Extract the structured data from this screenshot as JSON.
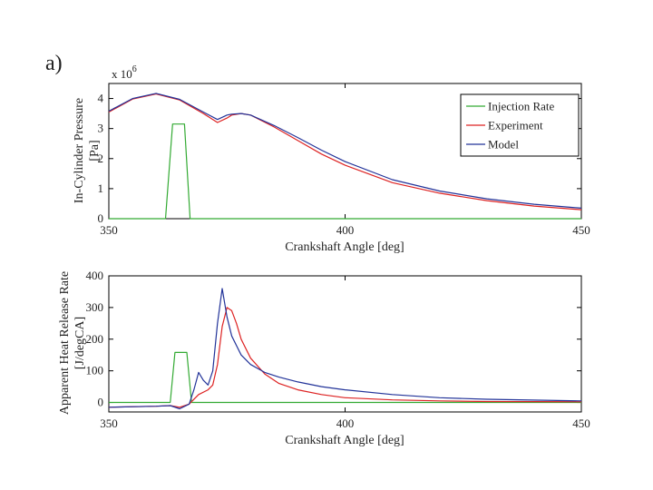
{
  "panel_label": "a)",
  "chart_data": [
    {
      "type": "line",
      "title": "",
      "xlabel": "Crankshaft Angle [deg]",
      "ylabel_line1": "In-Cylinder Pressure",
      "ylabel_line2": "[Pa]",
      "y_multiplier": "x 10",
      "y_multiplier_exponent": "6",
      "xlim": [
        350,
        450
      ],
      "ylim": [
        0,
        4.5
      ],
      "xticks": [
        350,
        400,
        450
      ],
      "yticks": [
        0,
        1,
        2,
        3,
        4
      ],
      "legend": {
        "position": "top-right",
        "entries": [
          "Injection Rate",
          "Experiment",
          "Model"
        ]
      },
      "series": [
        {
          "name": "Injection Rate",
          "color": "#33aa33",
          "x": [
            350,
            362,
            363.5,
            366,
            367.2,
            450
          ],
          "y": [
            0,
            0,
            3.15,
            3.15,
            0,
            0
          ]
        },
        {
          "name": "Experiment",
          "color": "#dd2222",
          "x": [
            350,
            355,
            360,
            365,
            370,
            373,
            375,
            376,
            378,
            380,
            385,
            390,
            395,
            400,
            410,
            420,
            430,
            440,
            450
          ],
          "y": [
            3.55,
            3.98,
            4.15,
            3.95,
            3.5,
            3.2,
            3.35,
            3.45,
            3.5,
            3.45,
            3.05,
            2.6,
            2.15,
            1.78,
            1.2,
            0.85,
            0.6,
            0.42,
            0.3
          ]
        },
        {
          "name": "Model",
          "color": "#223399",
          "x": [
            350,
            355,
            360,
            365,
            370,
            373,
            375,
            376,
            378,
            380,
            385,
            390,
            395,
            400,
            410,
            420,
            430,
            440,
            450
          ],
          "y": [
            3.58,
            4.0,
            4.17,
            3.97,
            3.55,
            3.3,
            3.45,
            3.48,
            3.5,
            3.45,
            3.1,
            2.7,
            2.28,
            1.9,
            1.3,
            0.92,
            0.66,
            0.48,
            0.35
          ]
        }
      ]
    },
    {
      "type": "line",
      "title": "",
      "xlabel": "Crankshaft Angle [deg]",
      "ylabel_line1": "Apparent Heat Release Rate",
      "ylabel_line2": "[J/degCA]",
      "xlim": [
        350,
        450
      ],
      "ylim": [
        -30,
        400
      ],
      "xticks": [
        350,
        400,
        450
      ],
      "yticks": [
        0,
        100,
        200,
        300,
        400
      ],
      "series": [
        {
          "name": "Injection Rate",
          "color": "#33aa33",
          "x": [
            350,
            363,
            364,
            366.5,
            367.5,
            450
          ],
          "y": [
            0,
            0,
            158,
            158,
            0,
            0
          ]
        },
        {
          "name": "Experiment",
          "color": "#dd2222",
          "x": [
            350,
            360,
            363,
            365,
            367,
            369,
            371,
            372,
            373,
            374,
            375,
            376,
            377,
            378,
            380,
            383,
            386,
            390,
            395,
            400,
            410,
            420,
            430,
            450
          ],
          "y": [
            -15,
            -12,
            -10,
            -15,
            -5,
            25,
            40,
            55,
            120,
            240,
            300,
            290,
            250,
            200,
            140,
            90,
            60,
            40,
            25,
            15,
            8,
            5,
            3,
            2
          ]
        },
        {
          "name": "Model",
          "color": "#223399",
          "x": [
            350,
            360,
            363,
            365,
            367,
            368,
            369,
            370,
            371,
            372,
            373,
            374,
            375,
            376,
            378,
            380,
            383,
            386,
            390,
            395,
            400,
            410,
            420,
            430,
            450
          ],
          "y": [
            -15,
            -12,
            -10,
            -20,
            -5,
            40,
            95,
            70,
            55,
            100,
            250,
            360,
            270,
            210,
            150,
            120,
            95,
            80,
            65,
            50,
            40,
            25,
            15,
            10,
            5
          ]
        }
      ]
    }
  ]
}
